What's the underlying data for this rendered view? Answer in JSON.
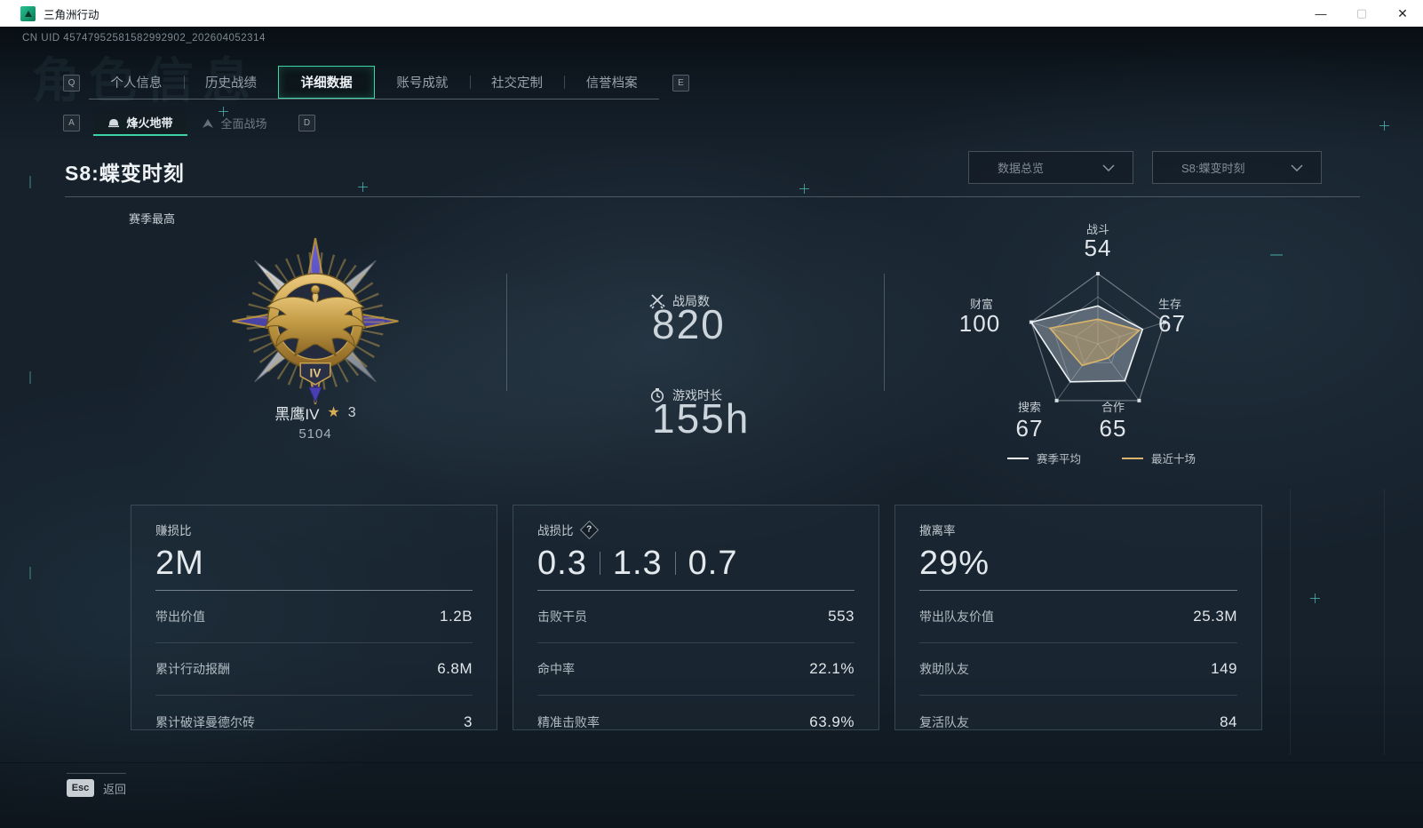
{
  "window": {
    "title": "三角洲行动",
    "minimize": "—",
    "maximize": "▢",
    "close": "✕"
  },
  "page": {
    "uid": "CN UID 45747952581582992902_202604052314",
    "watermark": "角色信息",
    "esc_key": "Esc",
    "esc_label": "返回"
  },
  "tabs": {
    "left_key": "Q",
    "right_key": "E",
    "active_index": 2,
    "items": [
      {
        "label": "个人信息"
      },
      {
        "label": "历史战绩"
      },
      {
        "label": "详细数据"
      },
      {
        "label": "账号成就"
      },
      {
        "label": "社交定制"
      },
      {
        "label": "信誉档案"
      }
    ]
  },
  "subtabs": {
    "left_key": "A",
    "right_key": "D",
    "active_index": 0,
    "items": [
      {
        "label": "烽火地带"
      },
      {
        "label": "全面战场"
      }
    ]
  },
  "season": {
    "title": "S8:蝶变时刻",
    "filter1": "数据总览",
    "filter2": "S8:蝶变时刻"
  },
  "overview": {
    "season_best": "赛季最高",
    "rank_name": "黑鹰IV",
    "rank_star_icon": "★",
    "rank_stars": "3",
    "rank_points": "5104",
    "rank_tier": "IV",
    "battles_label": "战局数",
    "battles_value": "820",
    "time_label": "游戏时长",
    "time_value": "155h"
  },
  "chart_data": {
    "type": "radar",
    "categories": [
      "战斗",
      "生存",
      "合作",
      "搜索",
      "财富"
    ],
    "axis_values": [
      54,
      67,
      65,
      67,
      100
    ],
    "max": 100,
    "series": [
      {
        "name": "赛季平均",
        "values": [
          54,
          67,
          65,
          67,
          100
        ],
        "color": "#eef2f4",
        "fill": "rgba(190,200,212,0.40)"
      },
      {
        "name": "最近十场",
        "values": [
          35,
          62,
          25,
          38,
          72
        ],
        "color": "#d9b56c",
        "fill": "rgba(213,176,104,0.45)"
      }
    ],
    "legend_position": "bottom",
    "grid": true
  },
  "cards": [
    {
      "title": "赚损比",
      "value": "2M",
      "rows": [
        {
          "label": "带出价值",
          "value": "1.2B"
        },
        {
          "label": "累计行动报酬",
          "value": "6.8M"
        },
        {
          "label": "累计破译曼德尔砖",
          "value": "3"
        }
      ]
    },
    {
      "title": "战损比",
      "help": "?",
      "value_parts": [
        "0.3",
        "1.3",
        "0.7"
      ],
      "rows": [
        {
          "label": "击败干员",
          "value": "553"
        },
        {
          "label": "命中率",
          "value": "22.1%"
        },
        {
          "label": "精准击败率",
          "value": "63.9%"
        }
      ]
    },
    {
      "title": "撤离率",
      "value": "29%",
      "rows": [
        {
          "label": "带出队友价值",
          "value": "25.3M"
        },
        {
          "label": "救助队友",
          "value": "149"
        },
        {
          "label": "复活队友",
          "value": "84"
        }
      ]
    }
  ],
  "colors": {
    "accent": "#3ed3a6",
    "recent_series": "#d9b56c",
    "avg_series": "#eef2f4"
  }
}
